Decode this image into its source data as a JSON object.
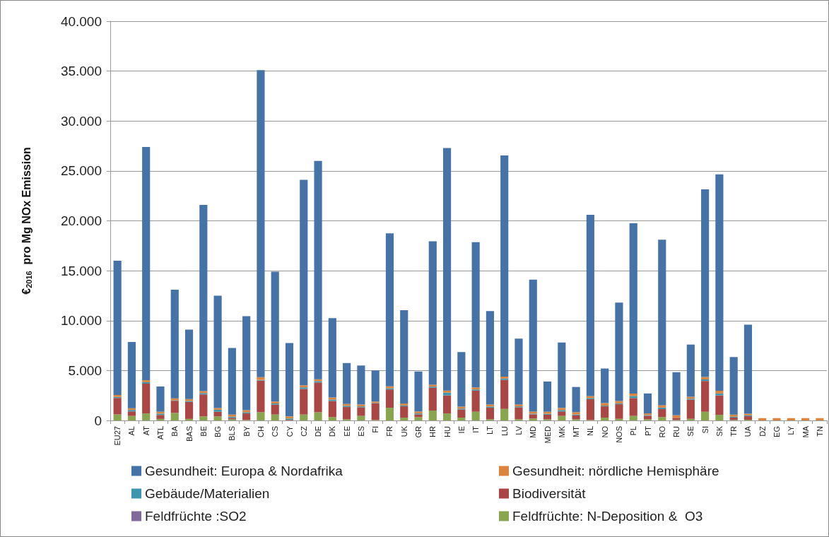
{
  "chart_data": {
    "type": "bar",
    "stacked": true,
    "ylabel": "€$_{2016}$  pro Mg NOx Emission",
    "categories": [
      "EU27",
      "AL",
      "AT",
      "ATL",
      "BA",
      "BAS",
      "BE",
      "BG",
      "BLS",
      "BY",
      "CH",
      "CS",
      "CY",
      "CZ",
      "DE",
      "DK",
      "EE",
      "ES",
      "FI",
      "FR",
      "UK",
      "GR",
      "HR",
      "HU",
      "IE",
      "IT",
      "LT",
      "LU",
      "LV",
      "MD",
      "MED",
      "MK",
      "MT",
      "NL",
      "NO",
      "NOS",
      "PL",
      "PT",
      "RO",
      "RU",
      "SE",
      "SI",
      "SK",
      "TR",
      "UA",
      "DZ",
      "EG",
      "LY",
      "MA",
      "TN"
    ],
    "series": [
      {
        "name": "Feldfrüchte: N-Deposition &  O3",
        "color": "#89a54e",
        "values": [
          600,
          450,
          700,
          150,
          750,
          150,
          400,
          400,
          120,
          50,
          820,
          590,
          20,
          590,
          820,
          330,
          120,
          450,
          50,
          1270,
          280,
          330,
          990,
          700,
          280,
          870,
          120,
          1150,
          120,
          190,
          120,
          450,
          120,
          50,
          280,
          160,
          450,
          120,
          330,
          50,
          160,
          870,
          560,
          50,
          70,
          0,
          0,
          0,
          0,
          0
        ]
      },
      {
        "name": "Feldfrüchte :SO2",
        "color": "#80699b",
        "values": [
          0,
          0,
          0,
          0,
          0,
          0,
          0,
          0,
          0,
          0,
          0,
          0,
          0,
          0,
          0,
          0,
          0,
          0,
          0,
          0,
          0,
          0,
          0,
          0,
          0,
          0,
          0,
          0,
          0,
          0,
          0,
          0,
          0,
          0,
          0,
          0,
          0,
          0,
          0,
          0,
          0,
          0,
          0,
          0,
          0,
          0,
          0,
          0,
          0,
          0
        ]
      },
      {
        "name": "Biodiversität",
        "color": "#aa4643",
        "values": [
          1650,
          450,
          2980,
          400,
          1220,
          1700,
          2200,
          470,
          140,
          650,
          3170,
          990,
          50,
          2560,
          2980,
          1620,
          1220,
          870,
          1650,
          1830,
          1130,
          280,
          2280,
          1810,
          820,
          2110,
          1150,
          2910,
          1200,
          420,
          450,
          450,
          380,
          2070,
          1130,
          1460,
          1790,
          350,
          800,
          210,
          1930,
          3080,
          1950,
          230,
          350,
          0,
          0,
          0,
          0,
          0
        ]
      },
      {
        "name": "Gebäude/Materialien",
        "color": "#3d96ae",
        "values": [
          100,
          150,
          150,
          130,
          50,
          100,
          140,
          200,
          120,
          120,
          70,
          120,
          120,
          160,
          140,
          140,
          120,
          90,
          50,
          120,
          90,
          90,
          120,
          280,
          90,
          120,
          120,
          140,
          90,
          70,
          90,
          140,
          90,
          120,
          70,
          90,
          210,
          70,
          160,
          null,
          90,
          160,
          190,
          90,
          90,
          0,
          0,
          0,
          0,
          0
        ]
      },
      {
        "name": "Gesundheit: nördliche Hemisphäre",
        "color": "#db843d",
        "values": [
          200,
          180,
          200,
          190,
          200,
          190,
          200,
          170,
          200,
          200,
          280,
          190,
          210,
          210,
          190,
          210,
          190,
          190,
          140,
          190,
          190,
          190,
          190,
          210,
          190,
          210,
          210,
          190,
          190,
          210,
          210,
          210,
          240,
          210,
          260,
          240,
          240,
          160,
          240,
          260,
          190,
          240,
          280,
          210,
          160,
          230,
          230,
          230,
          230,
          230
        ]
      },
      {
        "name": "Gesundheit: Europa & Nordafrika",
        "color": "#4572a7",
        "values": [
          13450,
          6620,
          23370,
          2530,
          10880,
          6960,
          18660,
          11260,
          6670,
          9430,
          30760,
          13010,
          7350,
          20580,
          21870,
          7950,
          4100,
          3900,
          3110,
          15340,
          9360,
          4010,
          14370,
          24300,
          5470,
          14540,
          9350,
          22160,
          6600,
          13210,
          3030,
          6550,
          2520,
          18150,
          3460,
          9850,
          17060,
          2000,
          16570,
          4310,
          5230,
          18800,
          21670,
          5770,
          8930,
          0,
          0,
          0,
          0,
          0
        ]
      }
    ],
    "ylim": [
      0,
      40000
    ],
    "yticks": [
      0,
      {
        "value": 5000,
        "label": "5.000"
      },
      {
        "value": 10000,
        "label": "10.000"
      },
      {
        "value": 15000,
        "label": "15.000"
      },
      {
        "value": 20000,
        "label": "20.000"
      },
      {
        "value": 25000,
        "label": "25.000"
      },
      {
        "value": 30000,
        "label": "30.000"
      },
      {
        "value": 35000,
        "label": "35.000"
      },
      {
        "value": 40000,
        "label": "40.000"
      }
    ],
    "grid": "y",
    "legend": "bottom"
  }
}
